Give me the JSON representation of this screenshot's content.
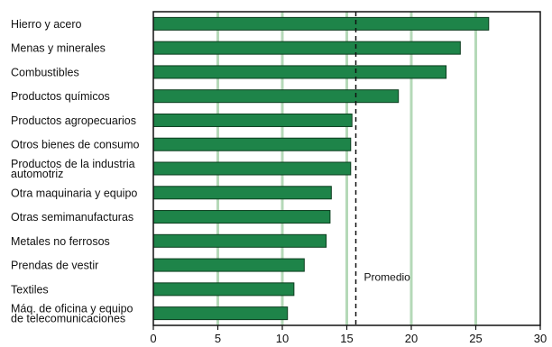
{
  "chart_data": {
    "type": "bar",
    "orientation": "horizontal",
    "categories": [
      "Hierro y acero",
      "Menas y minerales",
      "Combustibles",
      "Productos químicos",
      "Productos agropecuarios",
      "Otros bienes de consumo",
      [
        "Productos de la industria",
        "automotriz"
      ],
      "Otra maquinaria y equipo",
      "Otras semimanufacturas",
      "Metales no ferrosos",
      "Prendas de vestir",
      "Textiles",
      [
        "Máq. de oficina y equipo",
        "de telecomunicaciones"
      ]
    ],
    "values": [
      26.0,
      23.8,
      22.7,
      19.0,
      15.4,
      15.3,
      15.3,
      13.8,
      13.7,
      13.4,
      11.7,
      10.9,
      10.4
    ],
    "xlim": [
      0,
      30
    ],
    "xticks": [
      0,
      5,
      10,
      15,
      20,
      25,
      30
    ],
    "grid": "vertical",
    "bar_color": "#1e8449",
    "grid_color": "#b5d9b8",
    "average": {
      "value": 15.7,
      "label": "Promedio"
    },
    "title": "",
    "xlabel": "",
    "ylabel": ""
  }
}
